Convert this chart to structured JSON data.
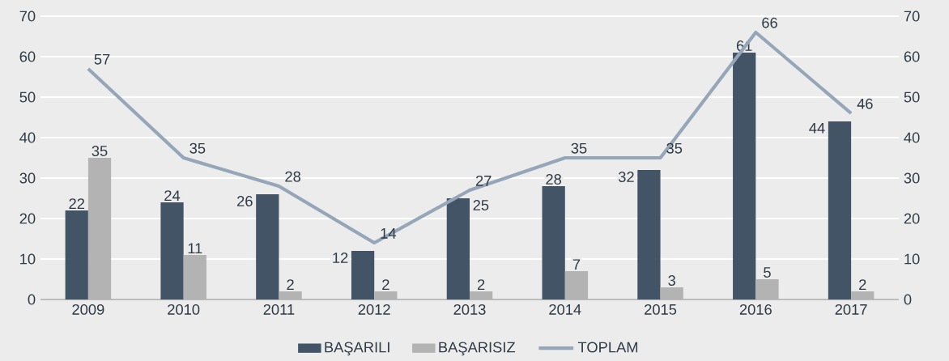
{
  "chart_data": {
    "type": "bar",
    "categories": [
      "2009",
      "2010",
      "2011",
      "2012",
      "2013",
      "2014",
      "2015",
      "2016",
      "2017"
    ],
    "series": [
      {
        "name": "BAŞARILI",
        "color": "#435466",
        "values": [
          22,
          24,
          26,
          12,
          25,
          28,
          32,
          61,
          44
        ]
      },
      {
        "name": "BAŞARISIZ",
        "color": "#b3b3b3",
        "values": [
          35,
          11,
          2,
          2,
          2,
          7,
          3,
          5,
          2
        ]
      },
      {
        "name": "TOPLAM",
        "type": "line",
        "axis": "y2",
        "color": "#94a6b8",
        "values": [
          57,
          35,
          28,
          14,
          27,
          35,
          35,
          66,
          46
        ]
      }
    ],
    "ylim": [
      0,
      70
    ],
    "yticks": [
      0,
      10,
      20,
      30,
      40,
      50,
      60,
      70
    ],
    "y2lim": [
      0,
      70
    ],
    "y2ticks": [
      0,
      10,
      20,
      30,
      40,
      50,
      60,
      70
    ],
    "grid": "y",
    "legend": "bottom",
    "data_labels": true,
    "marker": "none"
  }
}
